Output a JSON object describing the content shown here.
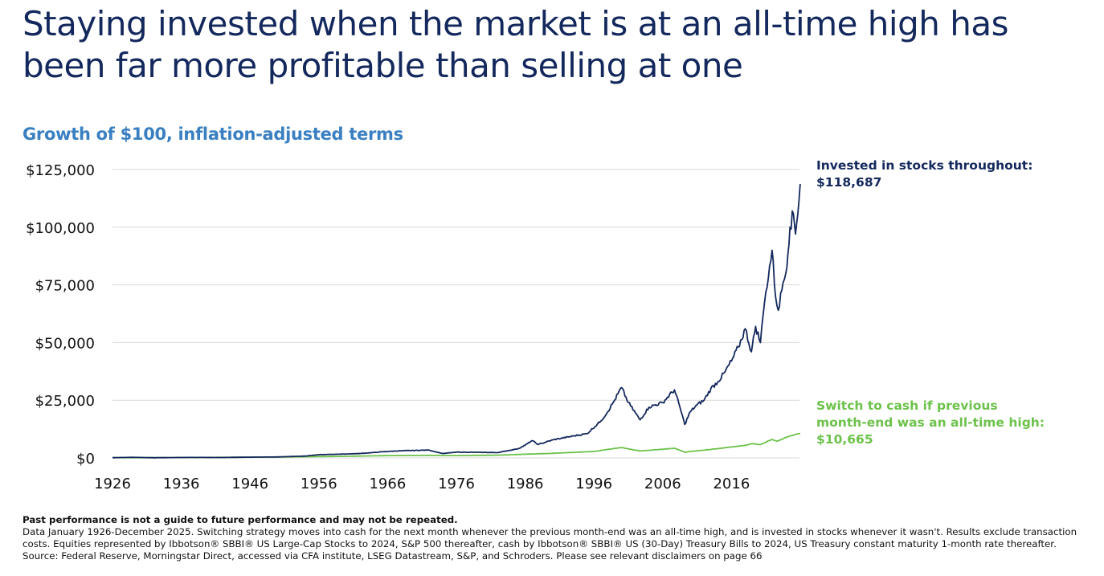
{
  "title": "Staying invested when the market is at an all-time high has been far more profitable than selling at one",
  "footnote": {
    "bold": "Past performance is not a guide to future performance and may not be repeated.",
    "text": "Data January 1926-December 2025. Switching strategy moves into cash for the next month whenever the previous month-end was an all-time high, and is invested in stocks whenever it wasn't. Results exclude transaction costs. Equities represented by Ibbotson® SBBI® US Large-Cap Stocks to 2024, S&P 500 thereafter, cash by Ibbotson® SBBI® US (30-Day) Treasury Bills to 2024, US Treasury constant maturity 1-month rate thereafter. Source: Federal Reserve, Morningstar Direct, accessed via CFA institute, LSEG Datastream, S&P, and Schroders. Please see relevant disclaimers on page 66"
  },
  "chart_data": {
    "type": "line",
    "title": "Growth of $100, inflation-adjusted terms",
    "xlabel": "",
    "ylabel": "",
    "xlim": [
      1926,
      2026
    ],
    "ylim": [
      0,
      125000
    ],
    "grid": true,
    "x_ticks": [
      "1926",
      "1936",
      "1946",
      "1956",
      "1966",
      "1976",
      "1986",
      "1996",
      "2006",
      "2016"
    ],
    "x_tick_values": [
      1926,
      1936,
      1946,
      1956,
      1966,
      1976,
      1986,
      1996,
      2006,
      2016
    ],
    "y_ticks": [
      "$0",
      "$25,000",
      "$50,000",
      "$75,000",
      "$100,000",
      "$125,000"
    ],
    "y_tick_values": [
      0,
      25000,
      50000,
      75000,
      100000,
      125000
    ],
    "colors": {
      "stocks": "#13285c",
      "cash": "#6cc24a",
      "grid": "#d9d9d9",
      "subtitle": "#3a7fc1"
    },
    "series": [
      {
        "name": "Invested in stocks throughout",
        "label_line1": "Invested in stocks throughout:",
        "label_line2": "$118,687",
        "final_value": 118687,
        "x": [
          1926,
          1929,
          1932,
          1937,
          1942,
          1946,
          1950,
          1954,
          1956,
          1960,
          1962,
          1966,
          1968,
          1972,
          1974,
          1976,
          1980,
          1982,
          1985,
          1986,
          1987,
          1987.9,
          1990,
          1993,
          1995,
          1997,
          1998,
          1999,
          2000,
          2001,
          2002.7,
          2004,
          2006,
          2007.7,
          2008.5,
          2009.2,
          2010,
          2011,
          2012,
          2013,
          2014,
          2015,
          2016,
          2017,
          2018,
          2018.9,
          2019.5,
          2020.2,
          2020.6,
          2021,
          2021.9,
          2022.4,
          2022.8,
          2023.5,
          2023.9,
          2024.5,
          2025,
          2025.3,
          2025.99
        ],
        "values": [
          100,
          250,
          80,
          200,
          180,
          320,
          420,
          800,
          1400,
          1700,
          1900,
          2800,
          3100,
          3400,
          1900,
          2500,
          2400,
          2300,
          4000,
          5500,
          7500,
          5800,
          7800,
          9500,
          10500,
          16000,
          20000,
          25000,
          30500,
          24000,
          16500,
          22000,
          24000,
          29500,
          22000,
          14500,
          20000,
          23000,
          25000,
          30000,
          33000,
          37000,
          42000,
          48000,
          56000,
          46000,
          57000,
          50000,
          62000,
          72000,
          90000,
          70000,
          64000,
          76000,
          80000,
          100000,
          106000,
          97000,
          118687
        ]
      },
      {
        "name": "Switch to cash if previous month-end was an all-time high",
        "label_line1": "Switch to cash if previous",
        "label_line2": "month-end was an all-time high:",
        "label_line3": "$10,665",
        "final_value": 10665,
        "x": [
          1926,
          1932,
          1940,
          1950,
          1960,
          1966,
          1972,
          1976,
          1982,
          1990,
          1996,
          2000,
          2002.7,
          2007.7,
          2009.2,
          2014,
          2018,
          2019,
          2020.2,
          2021.9,
          2022.6,
          2024,
          2025.99
        ],
        "values": [
          100,
          120,
          200,
          400,
          700,
          1000,
          1100,
          1000,
          1200,
          2000,
          2800,
          4500,
          3000,
          4200,
          2500,
          4000,
          5500,
          6200,
          5800,
          8000,
          7200,
          9000,
          10665
        ]
      }
    ]
  }
}
